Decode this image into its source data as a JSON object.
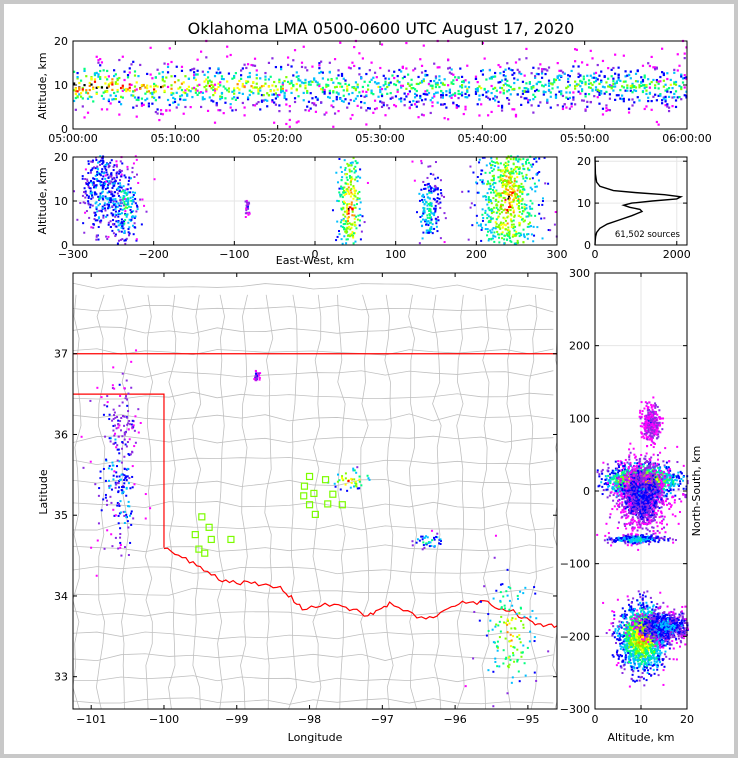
{
  "title": "Oklahoma LMA 0500-0600 UTC August 17, 2020",
  "colors": {
    "border": "#ff0000",
    "counties": "#c0c0c0",
    "stations": "#7cfc00",
    "grid": "#e6e6e6"
  },
  "chart_data": [
    {
      "id": "time-height",
      "type": "heatmap",
      "ylabel": "Altitude, km",
      "ylim": [
        0,
        20
      ],
      "yticks": [
        "0",
        "10",
        "20"
      ],
      "xlim_minutes": [
        0,
        60
      ],
      "xticks": [
        "05:00:00",
        "05:10:00",
        "05:20:00",
        "05:30:00",
        "05:40:00",
        "05:50:00",
        "06:00:00"
      ],
      "density_altitude_band_km": [
        6,
        12
      ],
      "gaps_minutes": [
        [
          38.7,
          39.2
        ]
      ]
    },
    {
      "id": "ew-altitude",
      "type": "heatmap",
      "xlabel": "East-West, km",
      "ylabel": "Altitude, km",
      "xlim": [
        -300,
        300
      ],
      "ylim": [
        0,
        20
      ],
      "xticks": [
        "−300",
        "−200",
        "−100",
        "0",
        "100",
        "200",
        "300"
      ],
      "yticks": [
        "0",
        "10",
        "20"
      ],
      "clusters": [
        {
          "x": -265,
          "alt": 12,
          "w": 25,
          "h": 11,
          "intensity": 0.5
        },
        {
          "x": -238,
          "alt": 9,
          "w": 20,
          "h": 9,
          "intensity": 0.6
        },
        {
          "x": -85,
          "alt": 8.5,
          "w": 3,
          "h": 2,
          "intensity": 0.3
        },
        {
          "x": 42,
          "alt": 9,
          "w": 15,
          "h": 16,
          "intensity": 0.95
        },
        {
          "x": 140,
          "alt": 7.5,
          "w": 15,
          "h": 9,
          "intensity": 0.6
        },
        {
          "x": 240,
          "alt": 10,
          "w": 40,
          "h": 20,
          "intensity": 0.9
        }
      ]
    },
    {
      "id": "altitude-histogram",
      "type": "line",
      "annotation": "61,502 sources",
      "xlim": [
        0,
        2250
      ],
      "ylim": [
        0,
        21
      ],
      "xticks": [
        "0",
        "2000"
      ],
      "yticks": [
        "0",
        "10",
        "20"
      ],
      "x": [
        0,
        5,
        15,
        40,
        120,
        300,
        600,
        900,
        1150,
        1100,
        850,
        700,
        900,
        1400,
        2000,
        2100,
        1700,
        1000,
        450,
        120,
        40,
        10,
        0
      ],
      "alt": [
        0,
        1,
        2,
        3,
        4,
        5,
        6,
        7,
        8,
        8.5,
        9,
        9.5,
        10,
        10.5,
        11,
        11.5,
        12,
        12.5,
        13,
        14,
        15,
        17,
        21
      ]
    },
    {
      "id": "map",
      "type": "scatter",
      "xlabel": "Longitude",
      "ylabel": "Latitude",
      "xlim": [
        -101.25,
        -94.6
      ],
      "ylim": [
        32.6,
        38.0
      ],
      "xticks": [
        "−101",
        "−100",
        "−99",
        "−98",
        "−97",
        "−96",
        "−95"
      ],
      "yticks": [
        "33",
        "34",
        "35",
        "36",
        "37"
      ],
      "stations": [
        {
          "lon": -99.57,
          "lat": 34.76
        },
        {
          "lon": -99.48,
          "lat": 34.98
        },
        {
          "lon": -99.38,
          "lat": 34.85
        },
        {
          "lon": -99.35,
          "lat": 34.7
        },
        {
          "lon": -99.52,
          "lat": 34.58
        },
        {
          "lon": -99.44,
          "lat": 34.53
        },
        {
          "lon": -99.08,
          "lat": 34.7
        },
        {
          "lon": -98.0,
          "lat": 35.48
        },
        {
          "lon": -98.07,
          "lat": 35.36
        },
        {
          "lon": -98.08,
          "lat": 35.24
        },
        {
          "lon": -97.94,
          "lat": 35.27
        },
        {
          "lon": -98.0,
          "lat": 35.13
        },
        {
          "lon": -97.92,
          "lat": 35.01
        },
        {
          "lon": -97.78,
          "lat": 35.44
        },
        {
          "lon": -97.68,
          "lat": 35.26
        },
        {
          "lon": -97.75,
          "lat": 35.14
        },
        {
          "lon": -97.55,
          "lat": 35.13
        }
      ],
      "clusters": [
        {
          "lon": -100.7,
          "lat": 35.6,
          "rx": 0.15,
          "ry": 0.5,
          "intensity": 0.45
        },
        {
          "lon": -100.55,
          "lat": 35.25,
          "rx": 0.08,
          "ry": 0.3,
          "intensity": 0.5
        },
        {
          "lon": -100.55,
          "lat": 36.2,
          "rx": 0.08,
          "ry": 0.2,
          "intensity": 0.3
        },
        {
          "lon": -98.74,
          "lat": 36.73,
          "rx": 0.02,
          "ry": 0.03,
          "intensity": 0.3
        },
        {
          "lon": -97.45,
          "lat": 35.45,
          "rx": 0.14,
          "ry": 0.07,
          "intensity": 0.95
        },
        {
          "lon": -96.38,
          "lat": 34.69,
          "rx": 0.12,
          "ry": 0.05,
          "intensity": 0.6
        },
        {
          "lon": -95.25,
          "lat": 33.55,
          "rx": 0.2,
          "ry": 0.38,
          "intensity": 0.85
        }
      ]
    },
    {
      "id": "altitude-ns",
      "type": "heatmap",
      "xlabel": "Altitude, km",
      "ylabel": "North-South, km",
      "xlim": [
        0,
        20
      ],
      "ylim": [
        -300,
        300
      ],
      "xticks": [
        "0",
        "10",
        "20"
      ],
      "yticks": [
        "−300",
        "−200",
        "−100",
        "0",
        "100",
        "200",
        "300"
      ],
      "clusters": [
        {
          "alt": 10,
          "ns": 15,
          "w": 8,
          "h": 22,
          "intensity": 0.95
        },
        {
          "alt": 10,
          "ns": -5,
          "w": 5,
          "h": 45,
          "intensity": 0.35
        },
        {
          "alt": 9,
          "ns": -65,
          "w": 6,
          "h": 6,
          "intensity": 0.6
        },
        {
          "alt": 10,
          "ns": -200,
          "w": 5,
          "h": 45,
          "intensity": 0.9
        },
        {
          "alt": 15,
          "ns": -185,
          "w": 6,
          "h": 20,
          "intensity": 0.45
        },
        {
          "alt": 12,
          "ns": 95,
          "w": 2,
          "h": 25,
          "intensity": 0.2
        }
      ]
    }
  ]
}
